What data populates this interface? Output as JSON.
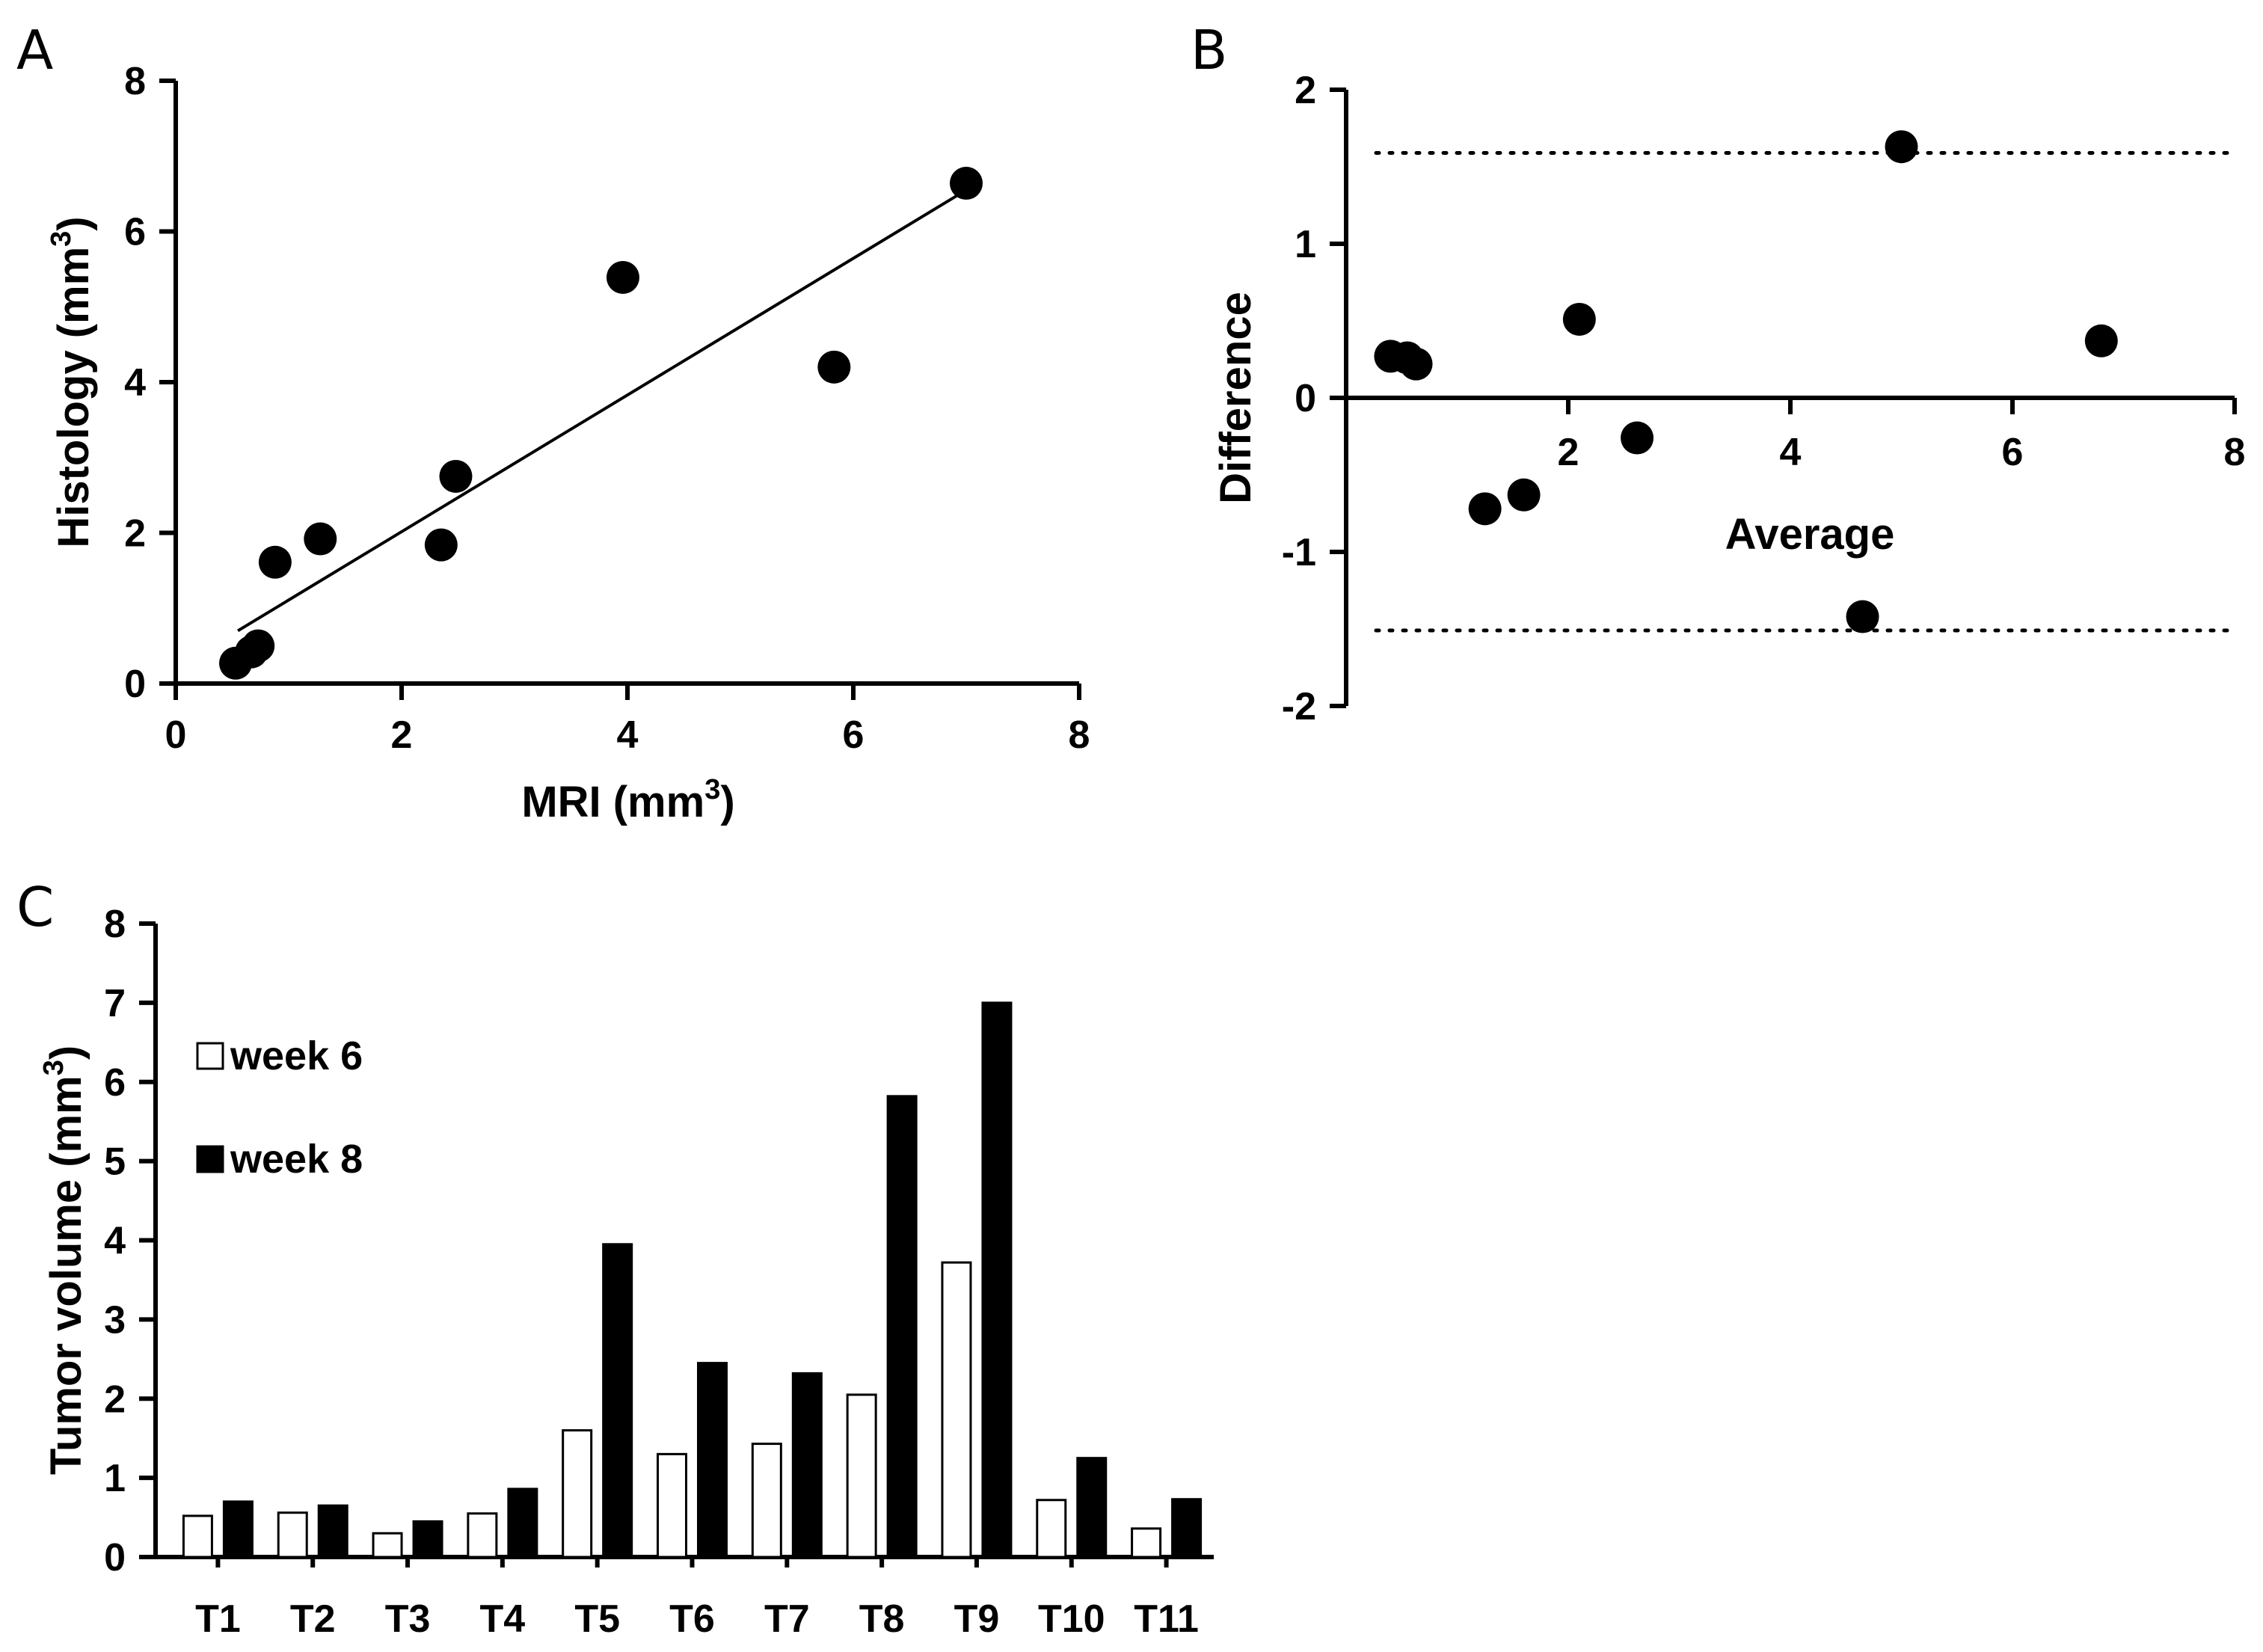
{
  "chart_data": [
    {
      "panel": "A",
      "type": "scatter",
      "xlabel": "MRI (mm",
      "xlabel_sup": "3",
      "xlabel_close": ")",
      "ylabel": "Histology (mm",
      "ylabel_sup": "3",
      "ylabel_close": ")",
      "xlim": [
        0,
        8
      ],
      "ylim": [
        0,
        8
      ],
      "xticks": [
        0,
        2,
        4,
        6,
        8
      ],
      "yticks": [
        0,
        2,
        4,
        6,
        8
      ],
      "points": [
        {
          "x": 0.53,
          "y": 0.27
        },
        {
          "x": 0.67,
          "y": 0.42
        },
        {
          "x": 0.73,
          "y": 0.5
        },
        {
          "x": 0.88,
          "y": 1.61
        },
        {
          "x": 1.28,
          "y": 1.92
        },
        {
          "x": 2.35,
          "y": 1.84
        },
        {
          "x": 2.48,
          "y": 2.75
        },
        {
          "x": 3.96,
          "y": 5.39
        },
        {
          "x": 5.83,
          "y": 4.2
        },
        {
          "x": 7.0,
          "y": 6.64
        }
      ],
      "fit_line": {
        "x1": 0.55,
        "y1": 0.7,
        "x2": 7.0,
        "y2": 6.55
      }
    },
    {
      "panel": "B",
      "type": "scatter",
      "xlabel": "Average",
      "ylabel": "Difference",
      "xlim": [
        0,
        8
      ],
      "ylim": [
        -2,
        2
      ],
      "xticks": [
        2,
        4,
        6,
        8
      ],
      "yticks": [
        -2,
        -1,
        0,
        1,
        2
      ],
      "points": [
        {
          "x": 0.4,
          "y": 0.27
        },
        {
          "x": 0.55,
          "y": 0.26
        },
        {
          "x": 0.63,
          "y": 0.22
        },
        {
          "x": 1.25,
          "y": -0.72
        },
        {
          "x": 1.6,
          "y": -0.63
        },
        {
          "x": 2.1,
          "y": 0.51
        },
        {
          "x": 2.62,
          "y": -0.26
        },
        {
          "x": 4.65,
          "y": -1.42
        },
        {
          "x": 5.0,
          "y": 1.63
        },
        {
          "x": 6.8,
          "y": 0.37
        }
      ],
      "limits_of_agreement": [
        1.59,
        -1.51
      ]
    },
    {
      "panel": "C",
      "type": "bar",
      "ylabel": "Tumor volume (mm",
      "ylabel_sup": "3",
      "ylabel_close": ")",
      "ylim": [
        0,
        8
      ],
      "yticks": [
        0,
        1,
        2,
        3,
        4,
        5,
        6,
        7,
        8
      ],
      "categories": [
        "T1",
        "T2",
        "T3",
        "T4",
        "T5",
        "T6",
        "T7",
        "T8",
        "T9",
        "T10",
        "T11"
      ],
      "series": [
        {
          "name": "week 6",
          "color": "#ffffff",
          "values": [
            0.52,
            0.56,
            0.3,
            0.55,
            1.6,
            1.3,
            1.43,
            2.05,
            3.72,
            0.72,
            0.36
          ]
        },
        {
          "name": "week 8",
          "color": "#000000",
          "values": [
            0.7,
            0.65,
            0.45,
            0.86,
            3.95,
            2.45,
            2.32,
            5.82,
            7.0,
            1.25,
            0.73
          ]
        }
      ]
    }
  ]
}
